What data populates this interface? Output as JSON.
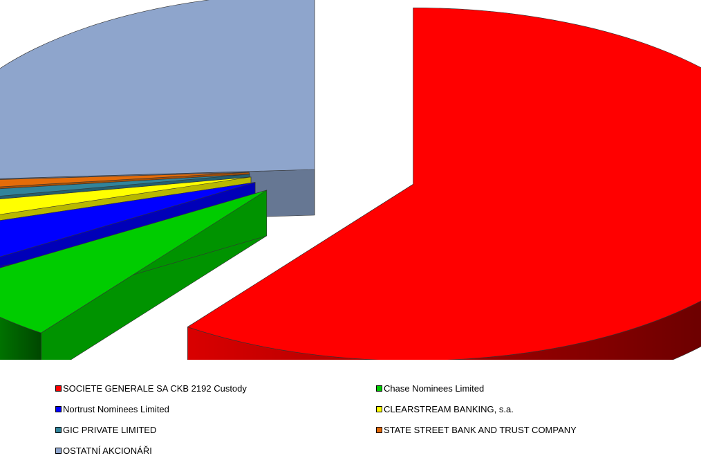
{
  "chart_data": {
    "type": "pie",
    "variant": "3d-exploded",
    "title": "",
    "legend_position": "bottom",
    "slices": [
      {
        "label": "SOCIETE GENERALE SA CKB 2192 Custody",
        "value": 60.0,
        "color": "#ff0000"
      },
      {
        "label": "Chase Nominees Limited",
        "value": 6.0,
        "color": "#00cc00"
      },
      {
        "label": "Nortrust Nominees Limited",
        "value": 4.0,
        "color": "#0000ff"
      },
      {
        "label": "CLEARSTREAM BANKING, s.a.",
        "value": 2.0,
        "color": "#ffff00"
      },
      {
        "label": "GIC PRIVATE LIMITED",
        "value": 1.0,
        "color": "#31849b"
      },
      {
        "label": "STATE STREET BANK AND TRUST COMPANY",
        "value": 1.0,
        "color": "#e46c0a"
      },
      {
        "label": "OSTATNÍ AKCIONÁŘI",
        "value": 26.0,
        "color": "#8ea5cc"
      }
    ]
  }
}
